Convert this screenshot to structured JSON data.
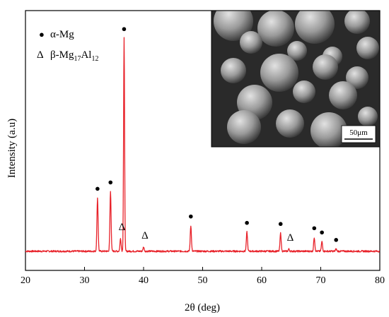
{
  "chart_data": {
    "type": "line",
    "xlabel": "2θ (deg)",
    "ylabel": "Intensity (a.u)",
    "xlim": [
      20,
      80
    ],
    "xticks": [
      20,
      30,
      40,
      50,
      60,
      70,
      80
    ],
    "ylim": [
      -0.09,
      1.13
    ],
    "yticks_shown": false,
    "grid": false,
    "line_color": "#e8222a",
    "legend": {
      "placement": "top-left",
      "entries": [
        {
          "symbol": "●",
          "label": "α-Mg"
        },
        {
          "symbol": "Δ",
          "label": "β-Mg17Al12"
        }
      ]
    },
    "inset": {
      "placement": "top-right",
      "content": "SEM image of spherical powder particles",
      "scale_bar_label": "50μm"
    },
    "baseline": 0.0,
    "series": [
      {
        "peaks": [
          {
            "x": 32.2,
            "y": 0.25,
            "phase": "α-Mg"
          },
          {
            "x": 34.4,
            "y": 0.28,
            "phase": "α-Mg"
          },
          {
            "x": 36.1,
            "y": 0.06,
            "phase": "β-Mg17Al12"
          },
          {
            "x": 36.7,
            "y": 1.0,
            "phase": "α-Mg"
          },
          {
            "x": 40.0,
            "y": 0.02,
            "phase": "β-Mg17Al12"
          },
          {
            "x": 48.0,
            "y": 0.12,
            "phase": "α-Mg"
          },
          {
            "x": 57.5,
            "y": 0.09,
            "phase": "α-Mg"
          },
          {
            "x": 63.2,
            "y": 0.085,
            "phase": "α-Mg"
          },
          {
            "x": 64.6,
            "y": 0.01,
            "phase": "β-Mg17Al12"
          },
          {
            "x": 68.9,
            "y": 0.065,
            "phase": "α-Mg"
          },
          {
            "x": 70.2,
            "y": 0.045,
            "phase": "α-Mg"
          },
          {
            "x": 72.6,
            "y": 0.01,
            "phase": "α-Mg"
          }
        ]
      }
    ]
  }
}
